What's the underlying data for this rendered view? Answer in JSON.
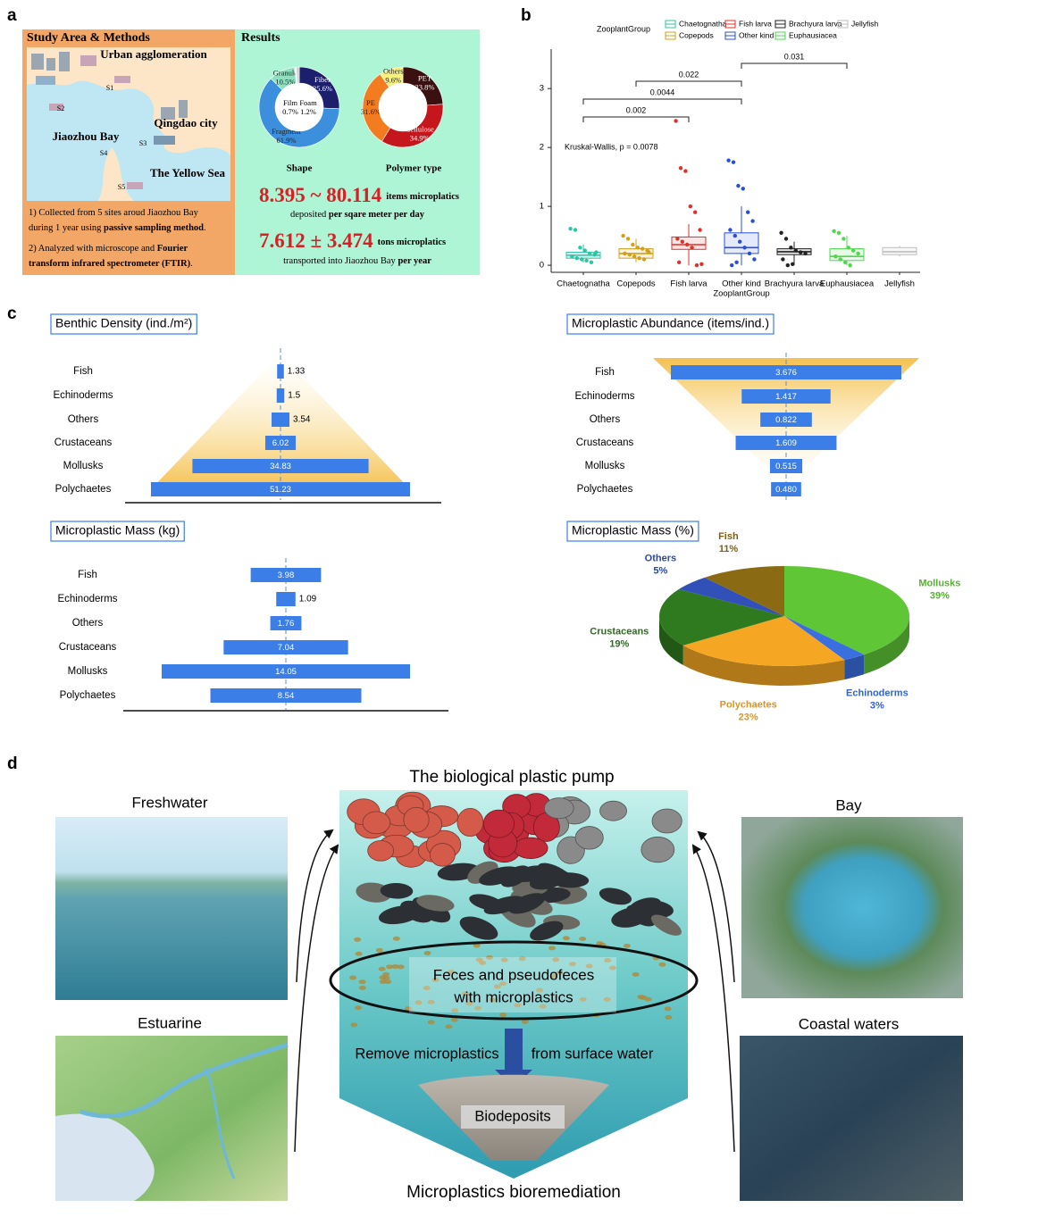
{
  "panel_labels": [
    "a",
    "b",
    "c",
    "d"
  ],
  "study": {
    "title": "Study Area & Methods",
    "places": [
      "Urban agglomeration",
      "Jiaozhou Bay",
      "Qingdao city",
      "The Yellow Sea"
    ],
    "sites": [
      "S1",
      "S2",
      "S3",
      "S4",
      "S5"
    ],
    "methods": [
      [
        {
          "text": "1) Collected from 5 sites aroud Jiaozhou Bay",
          "bold": false
        }
      ],
      [
        {
          "text": "during 1 year using ",
          "bold": false
        },
        {
          "text": "passive sampling method",
          "bold": true
        },
        {
          "text": ".",
          "bold": false
        }
      ],
      [
        {
          "text": "2) Analyzed with microscope and ",
          "bold": false
        },
        {
          "text": "Fourier",
          "bold": true
        }
      ],
      [
        {
          "text": "transform infrared spectrometer (FTIR)",
          "bold": true
        },
        {
          "text": ".",
          "bold": false
        }
      ]
    ]
  },
  "results": {
    "title": "Results",
    "charts": [
      {
        "type": "donut",
        "title": "Shape",
        "categories": [
          "Fiber",
          "Fragment",
          "Granule",
          "Film",
          "Foam"
        ],
        "values": [
          25.6,
          61.9,
          10.5,
          0.7,
          1.2
        ],
        "value_labels": [
          "25.6%",
          "61.9%",
          "10.5%",
          "0.7%",
          "1.2%"
        ],
        "colors": [
          "#1c1f6b",
          "#3b8fdc",
          "#8fe0c0",
          "#f2f2f2",
          "#cfcfcf"
        ]
      },
      {
        "type": "donut",
        "title": "Polymer type",
        "categories": [
          "PET",
          "Cellulose",
          "PE",
          "Others"
        ],
        "values": [
          23.8,
          34.9,
          31.6,
          9.6
        ],
        "value_labels": [
          "23.8%",
          "34.9%",
          "31.6%",
          "9.6%"
        ],
        "colors": [
          "#3a1010",
          "#c4161c",
          "#f47c20",
          "#f6f07c"
        ]
      }
    ],
    "stats": [
      {
        "value": "8.395 ~ 80.114",
        "unit": "items microplatics",
        "detail": [
          {
            "text": "deposited ",
            "bold": false
          },
          {
            "text": "per sqare meter per day",
            "bold": true
          }
        ]
      },
      {
        "value": "7.612 ± 3.474",
        "unit": "tons microplatics",
        "detail": [
          {
            "text": "transported into Jiaozhou Bay ",
            "bold": false
          },
          {
            "text": "per year",
            "bold": true
          }
        ]
      }
    ]
  },
  "zooplankton": {
    "type": "box",
    "legend_title": "ZooplantGroup",
    "x_label": "ZooplantGroup",
    "annotation": "Kruskal-Wallis, p = 0.0078",
    "categories": [
      "Chaetognatha",
      "Copepods",
      "Fish larva",
      "Other kind",
      "Brachyura larva",
      "Euphausiacea",
      "Jellyfish"
    ],
    "colors": [
      "#2ec4a5",
      "#d4a017",
      "#e0302a",
      "#2a4fd6",
      "#222222",
      "#4cd94c",
      "#bdbdbd"
    ],
    "ylim": [
      -0.12,
      3.67
    ],
    "yticks": [
      0,
      1,
      2,
      3
    ],
    "boxes": [
      {
        "min": 0.05,
        "q1": 0.12,
        "median": 0.17,
        "q3": 0.22,
        "max": 0.35
      },
      {
        "min": 0.05,
        "q1": 0.12,
        "median": 0.2,
        "q3": 0.28,
        "max": 0.45
      },
      {
        "min": 0.0,
        "q1": 0.27,
        "median": 0.35,
        "q3": 0.48,
        "max": 0.7
      },
      {
        "min": 0.0,
        "q1": 0.2,
        "median": 0.3,
        "q3": 0.55,
        "max": 1.0
      },
      {
        "min": 0.0,
        "q1": 0.18,
        "median": 0.23,
        "q3": 0.28,
        "max": 0.4
      },
      {
        "min": 0.0,
        "q1": 0.08,
        "median": 0.15,
        "q3": 0.28,
        "max": 0.5
      },
      {
        "min": 0.15,
        "q1": 0.18,
        "median": 0.23,
        "q3": 0.3,
        "max": 0.33
      }
    ],
    "points": [
      [
        0.62,
        0.6,
        0.3,
        0.25,
        0.2,
        0.18,
        0.15,
        0.12,
        0.1,
        0.08,
        0.05,
        0.22
      ],
      [
        0.5,
        0.45,
        0.35,
        0.3,
        0.28,
        0.25,
        0.2,
        0.18,
        0.15,
        0.12,
        0.1,
        0.22
      ],
      [
        2.45,
        1.65,
        1.6,
        1.0,
        0.9,
        0.6,
        0.45,
        0.4,
        0.35,
        0.3,
        0.0,
        0.02,
        0.05
      ],
      [
        1.78,
        1.75,
        1.35,
        1.3,
        0.9,
        0.75,
        0.6,
        0.5,
        0.4,
        0.3,
        0.2,
        0.1,
        0.0,
        0.05
      ],
      [
        0.55,
        0.45,
        0.3,
        0.25,
        0.22,
        0.2,
        0.1,
        0.0,
        0.02
      ],
      [
        0.58,
        0.55,
        0.45,
        0.3,
        0.25,
        0.2,
        0.15,
        0.1,
        0.05,
        0.0
      ],
      []
    ],
    "comparisons": [
      {
        "groups": [
          "Chaetognatha",
          "Fish larva"
        ],
        "p": 0.002
      },
      {
        "groups": [
          "Chaetognatha",
          "Other kind"
        ],
        "p": 0.0044
      },
      {
        "groups": [
          "Copepods",
          "Other kind"
        ],
        "p": 0.022
      },
      {
        "groups": [
          "Other kind",
          "Euphausiacea"
        ],
        "p": 0.031
      }
    ]
  },
  "benthos": {
    "charts": [
      {
        "type": "funnel",
        "title": "Benthic Density (ind./m²)",
        "categories": [
          "Fish",
          "Echinoderms",
          "Others",
          "Crustaceans",
          "Mollusks",
          "Polychaetes"
        ],
        "values": [
          1.33,
          1.5,
          3.54,
          6.02,
          34.83,
          51.23
        ],
        "color": "#3b7ee8"
      },
      {
        "type": "funnel",
        "title": "Microplastic Abundance (items/ind.)",
        "categories": [
          "Fish",
          "Echinoderms",
          "Others",
          "Crustaceans",
          "Mollusks",
          "Polychaetes"
        ],
        "values": [
          3.676,
          1.417,
          0.822,
          1.609,
          0.515,
          0.48
        ],
        "value_labels": [
          "3.676",
          "1.417",
          "0.822",
          "1.609",
          "0.515",
          "0.480"
        ],
        "color": "#3b7ee8"
      },
      {
        "type": "funnel",
        "title": "Microplastic Mass (kg)",
        "categories": [
          "Fish",
          "Echinoderms",
          "Others",
          "Crustaceans",
          "Mollusks",
          "Polychaetes"
        ],
        "values": [
          3.98,
          1.09,
          1.76,
          7.04,
          14.05,
          8.54
        ],
        "color": "#3b7ee8"
      },
      {
        "type": "pie3d",
        "title": "Microplastic Mass (%)",
        "categories": [
          "Mollusks",
          "Echinoderms",
          "Polychaetes",
          "Crustaceans",
          "Others",
          "Fish"
        ],
        "values": [
          39,
          3,
          23,
          19,
          5,
          11
        ],
        "value_labels": [
          "39%",
          "3%",
          "23%",
          "19%",
          "5%",
          "11%"
        ],
        "colors": [
          "#5fc636",
          "#3a6fe0",
          "#f5a623",
          "#2f7a1f",
          "#3150b8",
          "#8b6a14"
        ]
      }
    ]
  },
  "pump": {
    "title": "The biological plastic pump",
    "habitats": [
      "Freshwater",
      "Bay",
      "Estuarine",
      "Coastal waters"
    ],
    "feces": [
      "Feces and pseudofeces",
      "with microplastics"
    ],
    "remove": [
      "Remove microplastics",
      "from surface water"
    ],
    "biodeposits": "Biodeposits",
    "footer": "Microplastics bioremediation"
  }
}
